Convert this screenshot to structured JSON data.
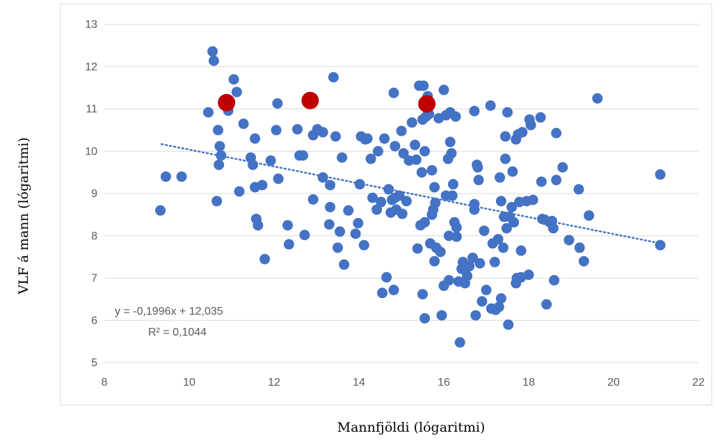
{
  "chart_data": {
    "type": "scatter",
    "title": "",
    "xlabel": "Mannfjöldi (lógaritmi)",
    "ylabel": "VLF á mann (lógaritmi)",
    "xlim": [
      8,
      22
    ],
    "ylim": [
      5,
      13
    ],
    "x_ticks": [
      "8",
      "10",
      "12",
      "14",
      "16",
      "18",
      "20",
      "22"
    ],
    "y_ticks": [
      "5",
      "6",
      "7",
      "8",
      "9",
      "10",
      "11",
      "12",
      "13"
    ],
    "grid": "horizontal",
    "colors": {
      "points": "#4472C4",
      "highlight": "#C00000",
      "trendline": "#4472C4",
      "grid": "#D9D9D9"
    },
    "trendline": {
      "slope": -0.1996,
      "intercept": 12.035,
      "x_range": [
        9.35,
        21.1
      ],
      "style": "dotted"
    },
    "annotations": {
      "equation": "y = -0,1996x + 12,035",
      "r_squared": "R² = 0,1044"
    },
    "highlighted_points": [
      [
        10.88,
        11.15
      ],
      [
        12.85,
        11.2
      ],
      [
        15.6,
        11.12
      ]
    ],
    "points": [
      [
        9.32,
        8.6
      ],
      [
        9.45,
        9.4
      ],
      [
        9.82,
        9.4
      ],
      [
        10.45,
        10.92
      ],
      [
        10.55,
        12.36
      ],
      [
        10.58,
        12.14
      ],
      [
        10.65,
        8.82
      ],
      [
        10.68,
        10.5
      ],
      [
        10.72,
        10.12
      ],
      [
        10.7,
        9.68
      ],
      [
        10.75,
        9.9
      ],
      [
        10.92,
        10.96
      ],
      [
        11.05,
        11.7
      ],
      [
        11.12,
        11.4
      ],
      [
        11.18,
        9.05
      ],
      [
        11.28,
        10.65
      ],
      [
        11.45,
        9.85
      ],
      [
        11.5,
        9.68
      ],
      [
        11.55,
        9.15
      ],
      [
        11.55,
        10.3
      ],
      [
        11.58,
        8.4
      ],
      [
        11.62,
        8.25
      ],
      [
        11.72,
        9.2
      ],
      [
        11.78,
        7.45
      ],
      [
        11.92,
        9.78
      ],
      [
        12.05,
        10.5
      ],
      [
        12.08,
        11.13
      ],
      [
        12.1,
        9.35
      ],
      [
        12.32,
        8.25
      ],
      [
        12.35,
        7.8
      ],
      [
        12.55,
        10.52
      ],
      [
        12.6,
        9.9
      ],
      [
        12.68,
        9.9
      ],
      [
        12.72,
        8.02
      ],
      [
        12.92,
        10.38
      ],
      [
        12.92,
        8.86
      ],
      [
        13.02,
        10.52
      ],
      [
        13.15,
        10.45
      ],
      [
        13.15,
        9.38
      ],
      [
        13.3,
        8.27
      ],
      [
        13.32,
        8.68
      ],
      [
        13.32,
        9.2
      ],
      [
        13.4,
        11.75
      ],
      [
        13.45,
        10.35
      ],
      [
        13.5,
        7.72
      ],
      [
        13.55,
        8.1
      ],
      [
        13.6,
        9.85
      ],
      [
        13.65,
        7.32
      ],
      [
        13.75,
        8.6
      ],
      [
        13.92,
        8.05
      ],
      [
        13.98,
        8.3
      ],
      [
        14.02,
        9.22
      ],
      [
        14.05,
        10.35
      ],
      [
        14.12,
        7.78
      ],
      [
        14.15,
        10.28
      ],
      [
        14.2,
        10.3
      ],
      [
        14.28,
        9.82
      ],
      [
        14.32,
        8.9
      ],
      [
        14.42,
        8.62
      ],
      [
        14.45,
        10.0
      ],
      [
        14.52,
        8.8
      ],
      [
        14.55,
        6.65
      ],
      [
        14.6,
        10.3
      ],
      [
        14.65,
        7.02
      ],
      [
        14.7,
        9.1
      ],
      [
        14.75,
        8.55
      ],
      [
        14.78,
        8.85
      ],
      [
        14.82,
        6.72
      ],
      [
        14.82,
        11.38
      ],
      [
        14.85,
        8.9
      ],
      [
        14.85,
        10.12
      ],
      [
        14.88,
        8.62
      ],
      [
        14.95,
        8.95
      ],
      [
        15.0,
        10.48
      ],
      [
        15.02,
        8.52
      ],
      [
        15.05,
        9.95
      ],
      [
        15.12,
        8.82
      ],
      [
        15.18,
        9.78
      ],
      [
        15.25,
        10.68
      ],
      [
        15.32,
        10.15
      ],
      [
        15.35,
        9.8
      ],
      [
        15.38,
        7.7
      ],
      [
        15.42,
        11.55
      ],
      [
        15.45,
        8.25
      ],
      [
        15.48,
        9.5
      ],
      [
        15.5,
        10.75
      ],
      [
        15.5,
        6.62
      ],
      [
        15.52,
        11.55
      ],
      [
        15.55,
        6.05
      ],
      [
        15.55,
        8.32
      ],
      [
        15.55,
        10.0
      ],
      [
        15.58,
        10.82
      ],
      [
        15.62,
        11.3
      ],
      [
        15.65,
        10.88
      ],
      [
        15.68,
        7.82
      ],
      [
        15.72,
        8.5
      ],
      [
        15.72,
        9.55
      ],
      [
        15.75,
        8.62
      ],
      [
        15.78,
        9.15
      ],
      [
        15.78,
        7.4
      ],
      [
        15.8,
        8.78
      ],
      [
        15.82,
        7.72
      ],
      [
        15.88,
        10.78
      ],
      [
        15.92,
        7.62
      ],
      [
        15.95,
        6.12
      ],
      [
        16.0,
        11.45
      ],
      [
        16.0,
        6.82
      ],
      [
        16.05,
        10.85
      ],
      [
        16.05,
        8.95
      ],
      [
        16.1,
        9.82
      ],
      [
        16.12,
        6.95
      ],
      [
        16.12,
        8.0
      ],
      [
        16.15,
        10.92
      ],
      [
        16.15,
        10.22
      ],
      [
        16.18,
        9.95
      ],
      [
        16.2,
        8.95
      ],
      [
        16.22,
        9.22
      ],
      [
        16.25,
        8.32
      ],
      [
        16.28,
        10.82
      ],
      [
        16.3,
        7.98
      ],
      [
        16.3,
        8.2
      ],
      [
        16.35,
        6.92
      ],
      [
        16.38,
        5.48
      ],
      [
        16.42,
        7.22
      ],
      [
        16.45,
        7.38
      ],
      [
        16.5,
        6.88
      ],
      [
        16.55,
        7.05
      ],
      [
        16.6,
        7.28
      ],
      [
        16.68,
        7.48
      ],
      [
        16.72,
        10.95
      ],
      [
        16.72,
        8.62
      ],
      [
        16.72,
        8.75
      ],
      [
        16.75,
        6.12
      ],
      [
        16.78,
        9.68
      ],
      [
        16.8,
        9.62
      ],
      [
        16.82,
        9.32
      ],
      [
        16.85,
        7.35
      ],
      [
        16.9,
        6.45
      ],
      [
        16.95,
        8.12
      ],
      [
        17.0,
        6.72
      ],
      [
        17.1,
        11.08
      ],
      [
        17.12,
        6.28
      ],
      [
        17.15,
        7.82
      ],
      [
        17.2,
        7.38
      ],
      [
        17.22,
        6.25
      ],
      [
        17.28,
        7.92
      ],
      [
        17.3,
        6.32
      ],
      [
        17.32,
        9.38
      ],
      [
        17.35,
        8.82
      ],
      [
        17.35,
        6.52
      ],
      [
        17.4,
        7.72
      ],
      [
        17.42,
        8.45
      ],
      [
        17.45,
        10.35
      ],
      [
        17.45,
        9.82
      ],
      [
        17.48,
        8.18
      ],
      [
        17.5,
        10.92
      ],
      [
        17.52,
        5.9
      ],
      [
        17.55,
        8.45
      ],
      [
        17.6,
        8.68
      ],
      [
        17.62,
        9.52
      ],
      [
        17.65,
        8.32
      ],
      [
        17.7,
        10.28
      ],
      [
        17.7,
        6.88
      ],
      [
        17.72,
        7.0
      ],
      [
        17.75,
        10.4
      ],
      [
        17.78,
        8.8
      ],
      [
        17.82,
        7.65
      ],
      [
        17.82,
        7.02
      ],
      [
        17.85,
        10.45
      ],
      [
        17.95,
        8.82
      ],
      [
        18.0,
        7.08
      ],
      [
        18.02,
        10.75
      ],
      [
        18.05,
        10.62
      ],
      [
        18.1,
        8.85
      ],
      [
        18.28,
        10.8
      ],
      [
        18.3,
        9.28
      ],
      [
        18.32,
        8.4
      ],
      [
        18.38,
        8.38
      ],
      [
        18.42,
        6.38
      ],
      [
        18.5,
        8.32
      ],
      [
        18.55,
        8.35
      ],
      [
        18.58,
        8.18
      ],
      [
        18.6,
        6.95
      ],
      [
        18.65,
        10.43
      ],
      [
        18.65,
        9.32
      ],
      [
        18.8,
        9.62
      ],
      [
        18.95,
        7.9
      ],
      [
        19.18,
        9.1
      ],
      [
        19.2,
        7.72
      ],
      [
        19.3,
        7.4
      ],
      [
        19.42,
        8.48
      ],
      [
        19.62,
        11.25
      ],
      [
        21.1,
        9.45
      ],
      [
        21.1,
        7.78
      ]
    ]
  }
}
